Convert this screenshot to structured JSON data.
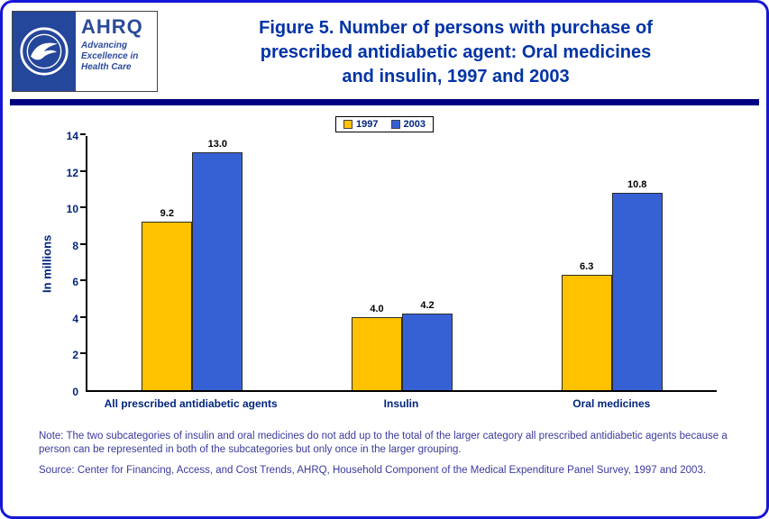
{
  "page": {
    "title_lines": [
      "Figure 5. Number of persons with purchase of",
      "prescribed antidiabetic agent: Oral medicines",
      "and insulin, 1997 and 2003"
    ]
  },
  "logo": {
    "acronym": "AHRQ",
    "tagline_lines": [
      "Advancing",
      "Excellence in",
      "Health Care"
    ]
  },
  "chart_data": {
    "type": "bar",
    "categories": [
      "All prescribed antidiabetic agents",
      "Insulin",
      "Oral medicines"
    ],
    "series": [
      {
        "name": "1997",
        "color": "#FFC200",
        "values": [
          9.2,
          4.0,
          6.3
        ]
      },
      {
        "name": "2003",
        "color": "#3561D4",
        "values": [
          13.0,
          4.2,
          10.8
        ]
      }
    ],
    "ylabel": "In millions",
    "xlabel": "",
    "ylim": [
      0,
      14
    ],
    "yticks": [
      0,
      2,
      4,
      6,
      8,
      10,
      12,
      14
    ],
    "grid": false,
    "legend_position": "top",
    "value_label_format": "one_decimal"
  },
  "notes": {
    "note": "Note: The two subcategories of insulin and oral medicines do not add up to the total of the larger category all prescribed antidiabetic agents because a person can be represented in both of the subcategories but only once in the larger grouping.",
    "source": "Source: Center for Financing, Access, and Cost Trends, AHRQ, Household Component of the Medical Expenditure Panel Survey, 1997 and 2003."
  },
  "colors": {
    "page_border": "#1616D6",
    "header_rule": "#000080",
    "title": "#0033A6",
    "axis_text": "#00257D",
    "note_text": "#3A3A9E",
    "value_text": "#000000",
    "legend_border": "#000000",
    "bar_border": "#2B2B2B",
    "logo_blue": "#2B4A9B",
    "seal_bg": "#24469B"
  }
}
